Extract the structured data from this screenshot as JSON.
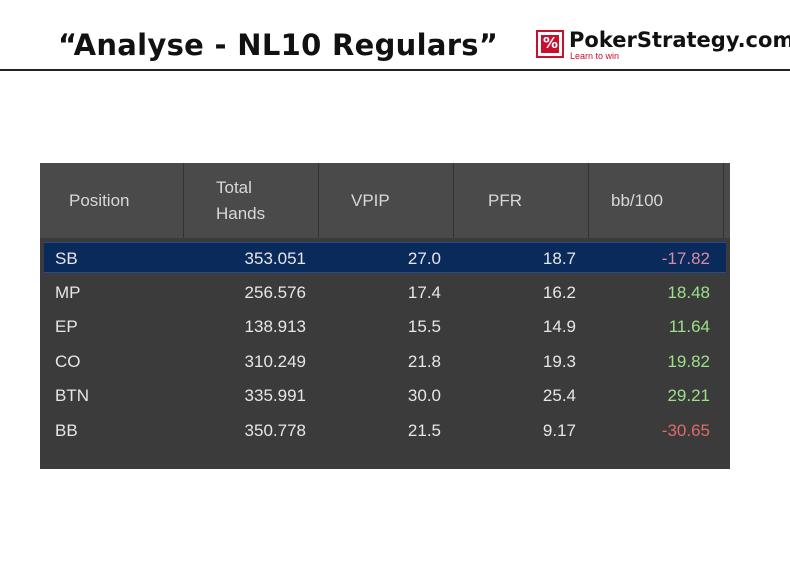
{
  "slide": {
    "title": "“Analyse - NL10 Regulars”"
  },
  "logo": {
    "name": "PokerStrategy.com",
    "tagline": "Learn to win",
    "accent_color": "#c8102e"
  },
  "table": {
    "columns": [
      "Position",
      "Total Hands",
      "VPIP",
      "PFR",
      "bb/100"
    ],
    "column_lines": [
      [
        "Position"
      ],
      [
        "Total",
        "Hands"
      ],
      [
        "VPIP"
      ],
      [
        "PFR"
      ],
      [
        "bb/100"
      ]
    ],
    "selected_row": 0,
    "rows": [
      {
        "position": "SB",
        "hands": "353.051",
        "vpip": "27.0",
        "pfr": "18.7",
        "bb100": "-17.82"
      },
      {
        "position": "MP",
        "hands": "256.576",
        "vpip": "17.4",
        "pfr": "16.2",
        "bb100": "18.48"
      },
      {
        "position": "EP",
        "hands": "138.913",
        "vpip": "15.5",
        "pfr": "14.9",
        "bb100": "11.64"
      },
      {
        "position": "CO",
        "hands": "310.249",
        "vpip": "21.8",
        "pfr": "19.3",
        "bb100": "19.82"
      },
      {
        "position": "BTN",
        "hands": "335.991",
        "vpip": "30.0",
        "pfr": "25.4",
        "bb100": "29.21"
      },
      {
        "position": "BB",
        "hands": "350.778",
        "vpip": "21.5",
        "pfr": "9.17",
        "bb100": "-30.65"
      }
    ],
    "colors": {
      "panel": "#3b3b3b",
      "header": "#4a4a4a",
      "selected": "#0b2a5c",
      "positive": "#9de08a",
      "negative": "#e06a6a"
    }
  }
}
